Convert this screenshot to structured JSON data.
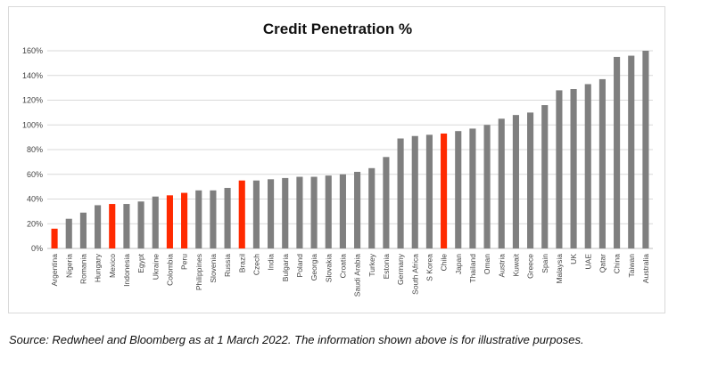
{
  "chart_data": {
    "type": "bar",
    "title": "Credit Penetration %",
    "xlabel": "",
    "ylabel": "",
    "ylim": [
      0,
      160
    ],
    "yticks": [
      "0%",
      "20%",
      "40%",
      "60%",
      "80%",
      "100%",
      "120%",
      "140%",
      "160%"
    ],
    "grid": true,
    "categories": [
      "Argentina",
      "Nigeria",
      "Romania",
      "Hungary",
      "Mexico",
      "Indonesia",
      "Egypt",
      "Ukraine",
      "Colombia",
      "Peru",
      "Philippines",
      "Slovenia",
      "Russia",
      "Brazil",
      "Czech",
      "India",
      "Bulgaria",
      "Poland",
      "Georgia",
      "Slovakia",
      "Croatia",
      "Saudi Arabia",
      "Turkey",
      "Estonia",
      "Germany",
      "South Africa",
      "S Korea",
      "Chile",
      "Japan",
      "Thailand",
      "Oman",
      "Austria",
      "Kuwait",
      "Greece",
      "Spain",
      "Malaysia",
      "UK",
      "UAE",
      "Qatar",
      "China",
      "Taiwan",
      "Australia"
    ],
    "values": [
      16,
      24,
      29,
      35,
      36,
      36,
      38,
      42,
      43,
      45,
      47,
      47,
      49,
      55,
      55,
      56,
      57,
      58,
      58,
      59,
      60,
      62,
      65,
      74,
      89,
      91,
      92,
      93,
      95,
      97,
      100,
      105,
      108,
      110,
      116,
      128,
      129,
      133,
      137,
      155,
      156,
      160
    ],
    "highlighted": [
      "Argentina",
      "Mexico",
      "Colombia",
      "Peru",
      "Brazil",
      "Chile"
    ],
    "colors": {
      "default": "#7f7f7f",
      "highlight": "#ff2a00",
      "grid": "#d9d9d9"
    }
  },
  "footer": {
    "source": "Source: Redwheel and Bloomberg as at 1 March 2022. The information shown above is for illustrative purposes."
  }
}
